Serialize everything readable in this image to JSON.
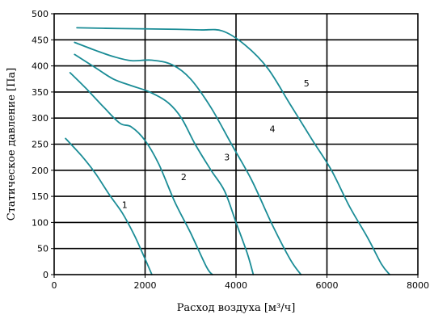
{
  "chart_data": {
    "type": "line",
    "xlabel": "Расход воздуха [м³/ч]",
    "ylabel": "Статическое давление [Па]",
    "xlim": [
      0,
      8000
    ],
    "ylim": [
      0,
      500
    ],
    "x_ticks": [
      0,
      2000,
      4000,
      6000,
      8000
    ],
    "y_ticks": [
      0,
      50,
      100,
      150,
      200,
      250,
      300,
      350,
      400,
      450,
      500
    ],
    "grid": true,
    "line_color": "#1a8c96",
    "series": [
      {
        "name": "1",
        "points": [
          [
            250,
            261
          ],
          [
            600,
            228
          ],
          [
            900,
            195
          ],
          [
            1200,
            155
          ],
          [
            1500,
            118
          ],
          [
            1750,
            78
          ],
          [
            1950,
            40
          ],
          [
            2150,
            0
          ]
        ]
      },
      {
        "name": "2",
        "points": [
          [
            350,
            387
          ],
          [
            700,
            357
          ],
          [
            1100,
            320
          ],
          [
            1450,
            290
          ],
          [
            1700,
            283
          ],
          [
            2000,
            257
          ],
          [
            2300,
            212
          ],
          [
            2650,
            140
          ],
          [
            3000,
            80
          ],
          [
            3350,
            15
          ],
          [
            3480,
            0
          ]
        ]
      },
      {
        "name": "3",
        "points": [
          [
            450,
            422
          ],
          [
            900,
            397
          ],
          [
            1300,
            375
          ],
          [
            1700,
            362
          ],
          [
            2100,
            350
          ],
          [
            2500,
            330
          ],
          [
            2800,
            300
          ],
          [
            3100,
            250
          ],
          [
            3450,
            200
          ],
          [
            3750,
            160
          ],
          [
            4000,
            100
          ],
          [
            4250,
            40
          ],
          [
            4380,
            0
          ]
        ]
      },
      {
        "name": "4",
        "points": [
          [
            450,
            445
          ],
          [
            900,
            430
          ],
          [
            1300,
            418
          ],
          [
            1700,
            410
          ],
          [
            2150,
            411
          ],
          [
            2600,
            402
          ],
          [
            3000,
            375
          ],
          [
            3450,
            320
          ],
          [
            3900,
            250
          ],
          [
            4350,
            180
          ],
          [
            4800,
            95
          ],
          [
            5200,
            28
          ],
          [
            5430,
            0
          ]
        ]
      },
      {
        "name": "5",
        "points": [
          [
            500,
            473
          ],
          [
            1500,
            471.5
          ],
          [
            2500,
            470.5
          ],
          [
            3200,
            469
          ],
          [
            3700,
            467
          ],
          [
            4200,
            440
          ],
          [
            4700,
            395
          ],
          [
            5200,
            325
          ],
          [
            5700,
            255
          ],
          [
            6100,
            200
          ],
          [
            6500,
            130
          ],
          [
            6900,
            70
          ],
          [
            7200,
            20
          ],
          [
            7380,
            0
          ]
        ]
      }
    ],
    "curve_labels": [
      {
        "text": "1",
        "x": 1550,
        "y": 128
      },
      {
        "text": "2",
        "x": 2850,
        "y": 181
      },
      {
        "text": "3",
        "x": 3800,
        "y": 219
      },
      {
        "text": "4",
        "x": 4800,
        "y": 273
      },
      {
        "text": "5",
        "x": 5550,
        "y": 361
      }
    ]
  }
}
